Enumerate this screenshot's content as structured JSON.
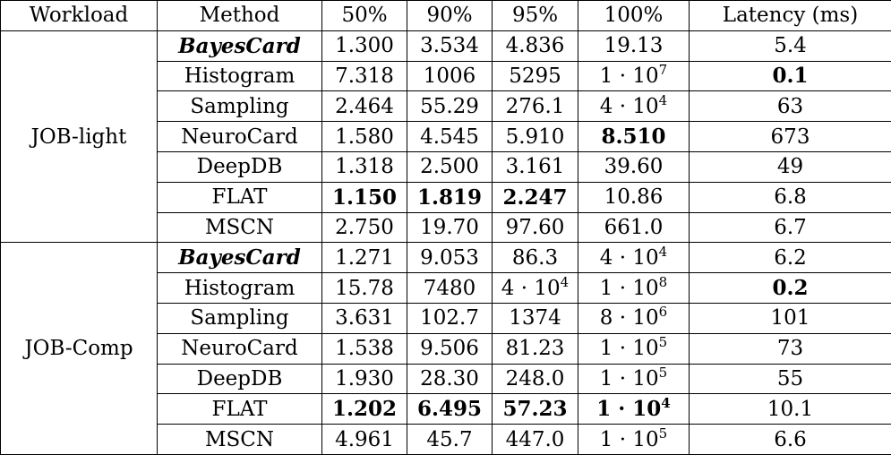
{
  "headers": [
    "Workload",
    "Method",
    "50%",
    "90%",
    "95%",
    "100%",
    "Latency (ms)"
  ],
  "groups": [
    {
      "workload": "JOB-light",
      "rows": [
        {
          "method": "BayesCard",
          "method_style": "bi",
          "p50": {
            "t": "1.300"
          },
          "p90": {
            "t": "3.534"
          },
          "p95": {
            "t": "4.836"
          },
          "p100": {
            "t": "19.13"
          },
          "latency": {
            "t": "5.4"
          }
        },
        {
          "method": "Histogram",
          "p50": {
            "t": "7.318"
          },
          "p90": {
            "t": "1006"
          },
          "p95": {
            "t": "5295"
          },
          "p100": {
            "t": "1 · 10",
            "sup": "7"
          },
          "latency": {
            "t": "0.1",
            "bold": true
          }
        },
        {
          "method": "Sampling",
          "p50": {
            "t": "2.464"
          },
          "p90": {
            "t": "55.29"
          },
          "p95": {
            "t": "276.1"
          },
          "p100": {
            "t": "4 · 10",
            "sup": "4"
          },
          "latency": {
            "t": "63"
          }
        },
        {
          "method": "NeuroCard",
          "p50": {
            "t": "1.580"
          },
          "p90": {
            "t": "4.545"
          },
          "p95": {
            "t": "5.910"
          },
          "p100": {
            "t": "8.510",
            "bold": true
          },
          "latency": {
            "t": "673"
          }
        },
        {
          "method": "DeepDB",
          "p50": {
            "t": "1.318"
          },
          "p90": {
            "t": "2.500"
          },
          "p95": {
            "t": "3.161"
          },
          "p100": {
            "t": "39.60"
          },
          "latency": {
            "t": "49"
          }
        },
        {
          "method": "FLAT",
          "p50": {
            "t": "1.150",
            "bold": true
          },
          "p90": {
            "t": "1.819",
            "bold": true
          },
          "p95": {
            "t": "2.247",
            "bold": true
          },
          "p100": {
            "t": "10.86"
          },
          "latency": {
            "t": "6.8"
          }
        },
        {
          "method": "MSCN",
          "p50": {
            "t": "2.750"
          },
          "p90": {
            "t": "19.70"
          },
          "p95": {
            "t": "97.60"
          },
          "p100": {
            "t": "661.0"
          },
          "latency": {
            "t": "6.7"
          }
        }
      ]
    },
    {
      "workload": "JOB-Comp",
      "rows": [
        {
          "method": "BayesCard",
          "method_style": "bi",
          "p50": {
            "t": "1.271"
          },
          "p90": {
            "t": "9.053"
          },
          "p95": {
            "t": "86.3"
          },
          "p100": {
            "t": "4 · 10",
            "sup": "4"
          },
          "latency": {
            "t": "6.2"
          }
        },
        {
          "method": "Histogram",
          "p50": {
            "t": "15.78"
          },
          "p90": {
            "t": "7480"
          },
          "p95": {
            "t": "4 · 10",
            "sup": "4"
          },
          "p100": {
            "t": "1 · 10",
            "sup": "8"
          },
          "latency": {
            "t": "0.2",
            "bold": true
          }
        },
        {
          "method": "Sampling",
          "p50": {
            "t": "3.631"
          },
          "p90": {
            "t": "102.7"
          },
          "p95": {
            "t": "1374"
          },
          "p100": {
            "t": "8 · 10",
            "sup": "6"
          },
          "latency": {
            "t": "101"
          }
        },
        {
          "method": "NeuroCard",
          "p50": {
            "t": "1.538"
          },
          "p90": {
            "t": "9.506"
          },
          "p95": {
            "t": "81.23"
          },
          "p100": {
            "t": "1 · 10",
            "sup": "5"
          },
          "latency": {
            "t": "73"
          }
        },
        {
          "method": "DeepDB",
          "p50": {
            "t": "1.930"
          },
          "p90": {
            "t": "28.30"
          },
          "p95": {
            "t": "248.0"
          },
          "p100": {
            "t": "1 · 10",
            "sup": "5"
          },
          "latency": {
            "t": "55"
          }
        },
        {
          "method": "FLAT",
          "p50": {
            "t": "1.202",
            "bold": true
          },
          "p90": {
            "t": "6.495",
            "bold": true
          },
          "p95": {
            "t": "57.23",
            "bold": true
          },
          "p100": {
            "t": "1 · 10",
            "sup": "4",
            "bold": true
          },
          "latency": {
            "t": "10.1"
          }
        },
        {
          "method": "MSCN",
          "p50": {
            "t": "4.961"
          },
          "p90": {
            "t": "45.7"
          },
          "p95": {
            "t": "447.0"
          },
          "p100": {
            "t": "1 · 10",
            "sup": "5"
          },
          "latency": {
            "t": "6.6"
          }
        }
      ]
    }
  ]
}
